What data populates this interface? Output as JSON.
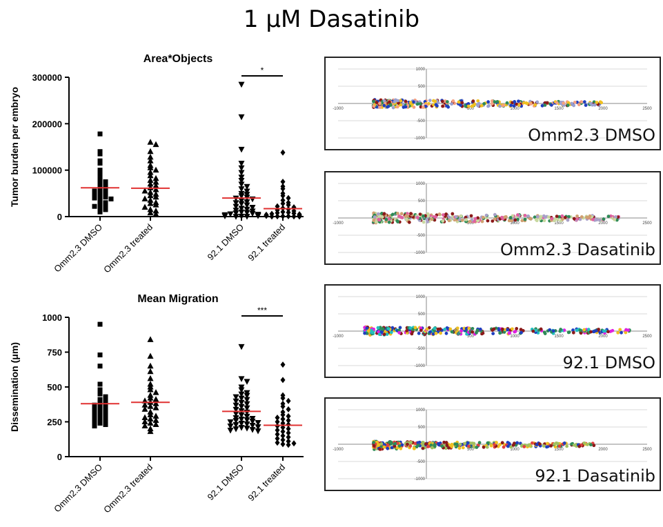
{
  "title": "1 μM Dasatinib",
  "chart_data": [
    {
      "type": "scatter",
      "title": "Area*Objects",
      "ylabel": "Tumor burden per embryo",
      "ylim": [
        0,
        300000
      ],
      "yticks": [
        0,
        100000,
        200000,
        300000
      ],
      "categories": [
        "Omm2.3 DMSO",
        "Omm2.3 treated",
        "92.1 DMSO",
        "92.1 treated"
      ],
      "markers": [
        "square",
        "triangle-up",
        "triangle-down",
        "diamond"
      ],
      "mean_color": "#e03030",
      "means": [
        62000,
        61000,
        40000,
        17000
      ],
      "significance": [
        {
          "from": "92.1 DMSO",
          "to": "92.1 treated",
          "label": "*"
        }
      ],
      "series": [
        {
          "values": [
            178000,
            140000,
            135000,
            120000,
            115000,
            100000,
            95000,
            90000,
            80000,
            75000,
            70000,
            65000,
            60000,
            58000,
            55000,
            52000,
            50000,
            48000,
            45000,
            42000,
            40000,
            38000,
            35000,
            30000,
            28000,
            25000,
            22000,
            18000,
            15000,
            10000
          ]
        },
        {
          "values": [
            160000,
            155000,
            140000,
            128000,
            120000,
            110000,
            105000,
            100000,
            95000,
            88000,
            82000,
            78000,
            74000,
            70000,
            66000,
            62000,
            58000,
            55000,
            52000,
            48000,
            45000,
            42000,
            38000,
            35000,
            30000,
            28000,
            25000,
            20000,
            15000,
            12000,
            8000,
            5000
          ]
        },
        {
          "values": [
            285000,
            215000,
            145000,
            115000,
            105000,
            95000,
            85000,
            78000,
            70000,
            65000,
            60000,
            55000,
            50000,
            48000,
            45000,
            42000,
            40000,
            38000,
            35000,
            32000,
            30000,
            28000,
            25000,
            22000,
            20000,
            18000,
            16000,
            14000,
            12000,
            10000,
            9000,
            8000,
            7000,
            6000,
            5000,
            4000,
            3000,
            2500,
            2000,
            1500,
            1000,
            500,
            300
          ]
        },
        {
          "values": [
            138000,
            75000,
            65000,
            60000,
            50000,
            45000,
            40000,
            35000,
            30000,
            28000,
            25000,
            22000,
            20000,
            18000,
            16000,
            14000,
            12000,
            10000,
            9000,
            8000,
            7000,
            6000,
            5000,
            4000,
            3000,
            2500,
            2000,
            1500,
            1000,
            800,
            600,
            400,
            200,
            100
          ]
        }
      ]
    },
    {
      "type": "scatter",
      "title": "Mean Migration",
      "ylabel": "Dissemination (μm)",
      "ylim": [
        0,
        1000
      ],
      "yticks": [
        0,
        250,
        500,
        750,
        1000
      ],
      "categories": [
        "Omm2.3 DMSO",
        "Omm2.3 treated",
        "92.1 DMSO",
        "92.1 treated"
      ],
      "markers": [
        "square",
        "triangle-up",
        "triangle-down",
        "diamond"
      ],
      "mean_color": "#e03030",
      "means": [
        380,
        390,
        325,
        225
      ],
      "significance": [
        {
          "from": "92.1 DMSO",
          "to": "92.1 treated",
          "label": "***"
        }
      ],
      "series": [
        {
          "values": [
            950,
            730,
            650,
            520,
            480,
            450,
            430,
            410,
            400,
            390,
            380,
            370,
            360,
            350,
            340,
            330,
            320,
            310,
            300,
            290,
            280,
            270,
            260,
            250,
            240,
            230,
            220
          ]
        },
        {
          "values": [
            840,
            720,
            650,
            610,
            560,
            520,
            500,
            480,
            460,
            440,
            420,
            410,
            400,
            390,
            380,
            370,
            360,
            350,
            340,
            320,
            300,
            290,
            280,
            270,
            260,
            250,
            240,
            230,
            220,
            200,
            180
          ]
        },
        {
          "values": [
            790,
            560,
            540,
            500,
            480,
            460,
            450,
            440,
            430,
            420,
            410,
            400,
            390,
            380,
            370,
            360,
            350,
            340,
            330,
            320,
            310,
            300,
            290,
            280,
            275,
            270,
            265,
            260,
            255,
            250,
            245,
            240,
            235,
            230,
            225,
            220,
            215,
            210,
            205,
            200,
            195,
            190,
            185
          ]
        },
        {
          "values": [
            660,
            550,
            440,
            420,
            400,
            380,
            360,
            340,
            320,
            300,
            290,
            280,
            270,
            260,
            250,
            240,
            230,
            220,
            210,
            200,
            190,
            180,
            170,
            160,
            150,
            140,
            130,
            120,
            110,
            100,
            95,
            90,
            85
          ]
        }
      ]
    }
  ],
  "panels": [
    {
      "label": "Omm2.3 DMSO",
      "x_ticks": [
        "-1000",
        "500",
        "1000",
        "1500",
        "2000",
        "2500"
      ],
      "y_ticks": [
        "1000",
        "500",
        "-500",
        "-1000"
      ],
      "x_span": [
        -600,
        2050
      ],
      "y_spread": [
        -130,
        110
      ],
      "dominant_colors": [
        "#f5a080",
        "#2e8b57",
        "#1f3fbf",
        "#8b1a1a",
        "#9aa0d0",
        "#f0c020"
      ]
    },
    {
      "label": "Omm2.3 Dasatinib",
      "x_ticks": [
        "-1000",
        "500",
        "1000",
        "1500",
        "2000",
        "2500"
      ],
      "y_ticks": [
        "1000",
        "500",
        "-500",
        "-1000"
      ],
      "x_span": [
        -600,
        2200
      ],
      "y_spread": [
        -150,
        150
      ],
      "dominant_colors": [
        "#a8a0c8",
        "#8b1a1a",
        "#2e8b57",
        "#d0a070",
        "#c8d8a0",
        "#e060a0"
      ]
    },
    {
      "label": "92.1 DMSO",
      "x_ticks": [
        "-1000",
        "500",
        "1000",
        "1500",
        "2000",
        "2500"
      ],
      "y_ticks": [
        "1000",
        "500",
        "-500",
        "-1000"
      ],
      "x_span": [
        -700,
        2300
      ],
      "y_spread": [
        -120,
        120
      ],
      "dominant_colors": [
        "#8b1a1a",
        "#1f3fbf",
        "#2e8b57",
        "#e020e0",
        "#20c0c0",
        "#f0c020"
      ]
    },
    {
      "label": "92.1 Dasatinib",
      "x_ticks": [
        "-1000",
        "500",
        "1000",
        "1500",
        "2000",
        "2500"
      ],
      "y_ticks": [
        "1000",
        "500",
        "-500",
        "-1000"
      ],
      "x_span": [
        -600,
        1900
      ],
      "y_spread": [
        -150,
        80
      ],
      "dominant_colors": [
        "#a0c060",
        "#8b1a1a",
        "#1f3fbf",
        "#2e8b57",
        "#f0c020",
        "#e04040"
      ]
    }
  ]
}
